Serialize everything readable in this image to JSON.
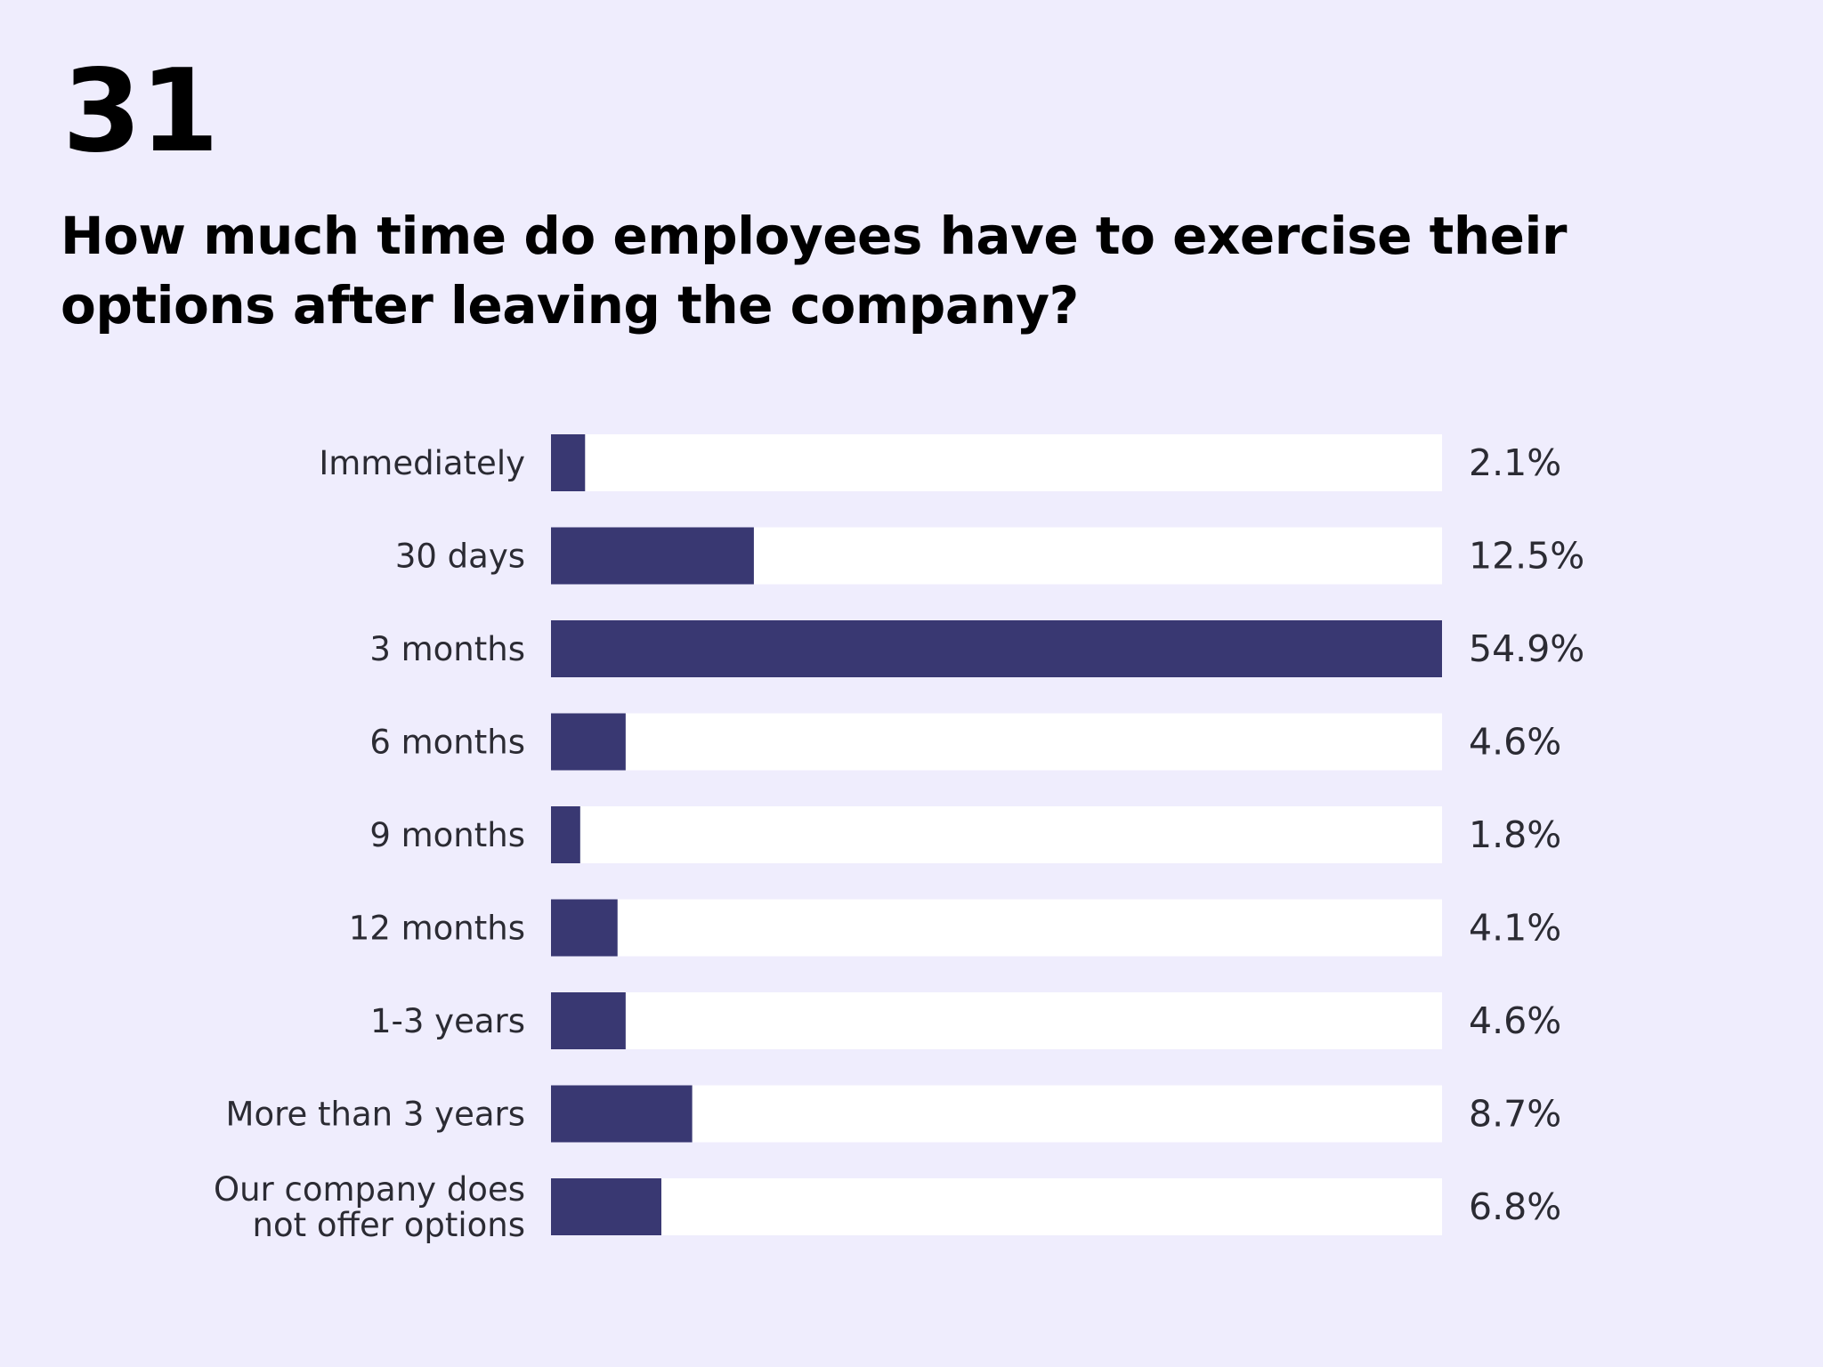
{
  "page_number": "31",
  "title": "How much time do employees have to exercise their options after leaving the company?",
  "colors": {
    "background": "#efedfd",
    "bar_fill": "#393872",
    "bar_track": "#ffffff"
  },
  "chart_data": {
    "type": "bar",
    "orientation": "horizontal",
    "title": "How much time do employees have to exercise their options after leaving the company?",
    "categories": [
      [
        "Immediately"
      ],
      [
        "30 days"
      ],
      [
        "3 months"
      ],
      [
        "6 months"
      ],
      [
        "9 months"
      ],
      [
        "12 months"
      ],
      [
        "1-3 years"
      ],
      [
        "More than 3 years"
      ],
      [
        "Our company does",
        "not offer options"
      ]
    ],
    "values": [
      2.1,
      12.5,
      54.9,
      4.6,
      1.8,
      4.1,
      4.6,
      8.7,
      6.8
    ],
    "value_labels": [
      "2.1%",
      "12.5%",
      "54.9%",
      "4.6%",
      "1.8%",
      "4.1%",
      "4.6%",
      "8.7%",
      "6.8%"
    ],
    "unit": "%",
    "xlim": [
      0,
      54.9
    ],
    "grid": false,
    "legend": "none"
  }
}
